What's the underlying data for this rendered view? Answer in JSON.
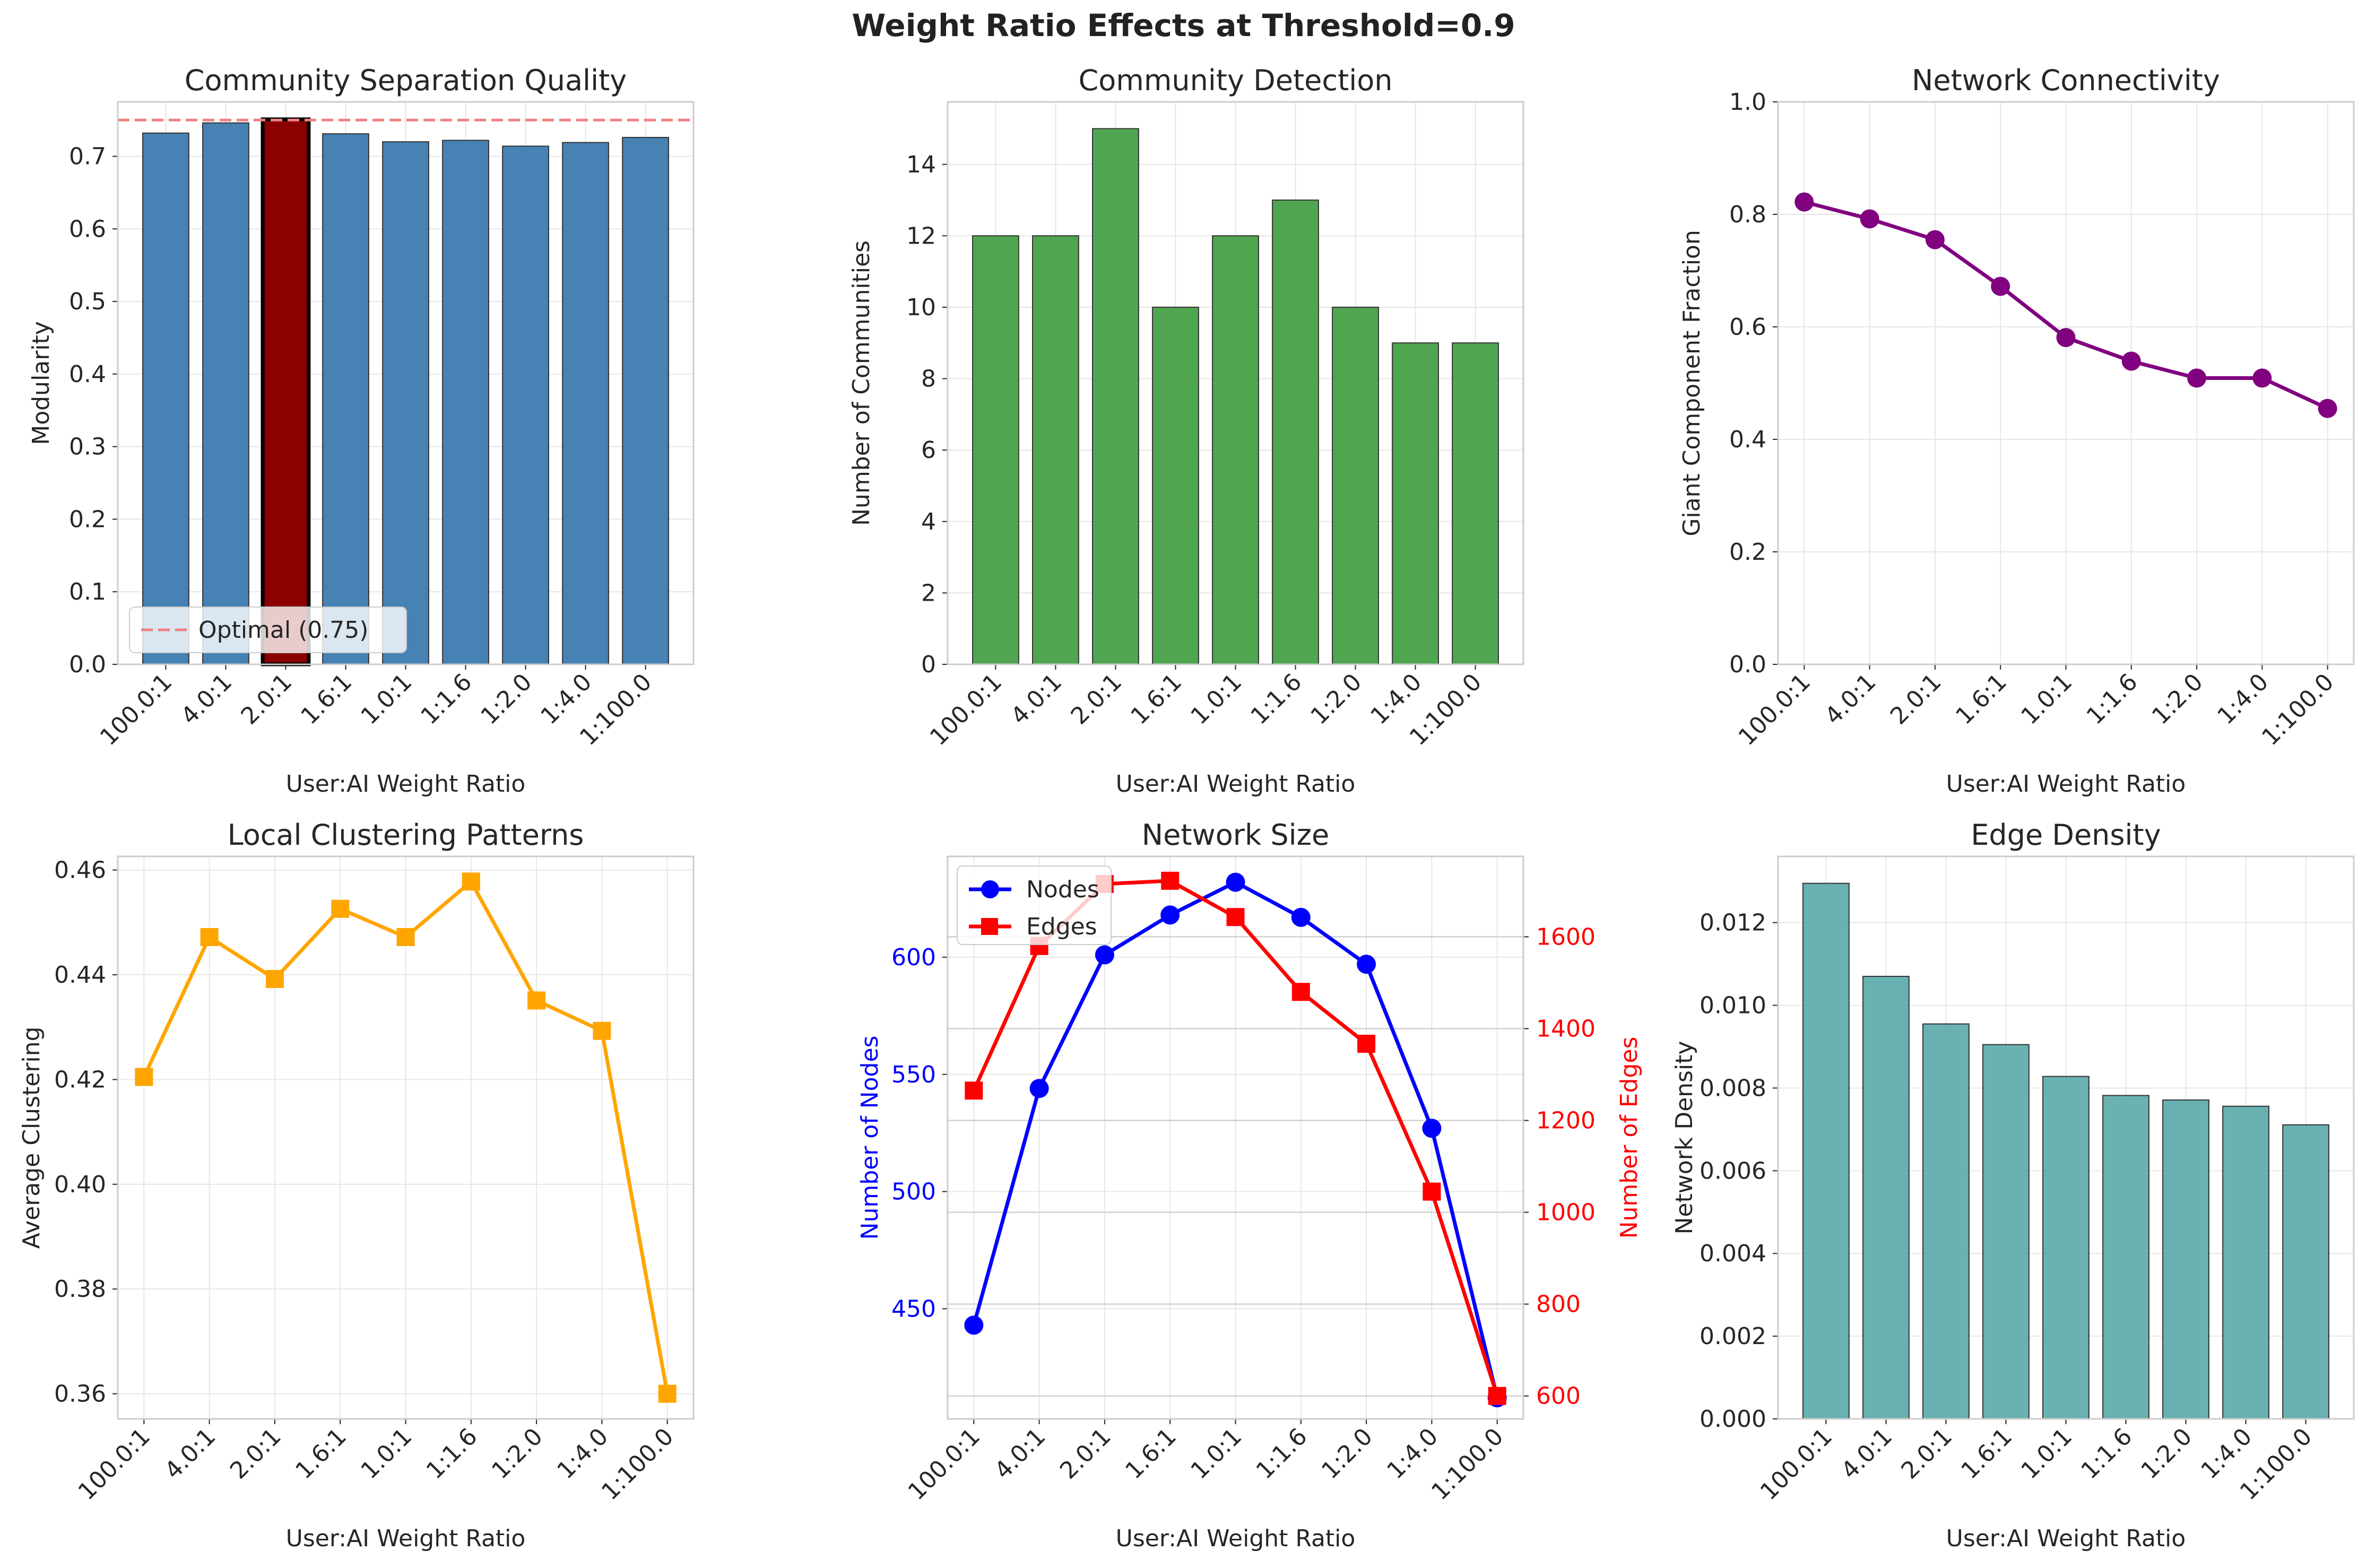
{
  "figure": {
    "title": "Weight Ratio Effects at Threshold=0.9"
  },
  "chart_data": [
    {
      "id": "modularity",
      "type": "bar",
      "title": "Community Separation Quality",
      "xlabel": "User:AI Weight Ratio",
      "ylabel": "Modularity",
      "categories": [
        "100.0:1",
        "4.0:1",
        "2.0:1",
        "1.6:1",
        "1.0:1",
        "1:1.6",
        "1:2.0",
        "1:4.0",
        "1:100.0"
      ],
      "values": [
        0.732,
        0.746,
        0.751,
        0.731,
        0.72,
        0.722,
        0.714,
        0.719,
        0.726
      ],
      "ylim": [
        0,
        0.775
      ],
      "yticks": [
        0.0,
        0.1,
        0.2,
        0.3,
        0.4,
        0.5,
        0.6,
        0.7
      ],
      "ytick_labels": [
        "0.0",
        "0.1",
        "0.2",
        "0.3",
        "0.4",
        "0.5",
        "0.6",
        "0.7"
      ],
      "bar_color": "#4682b4",
      "highlight_index": 2,
      "highlight_color": "#8b0000",
      "reference_line": {
        "value": 0.75,
        "label": "Optimal (0.75)",
        "color": "#f08080"
      },
      "legend_position": "lower-left",
      "grid": true
    },
    {
      "id": "communities",
      "type": "bar",
      "title": "Community Detection",
      "xlabel": "User:AI Weight Ratio",
      "ylabel": "Number of Communities",
      "categories": [
        "100.0:1",
        "4.0:1",
        "2.0:1",
        "1.6:1",
        "1.0:1",
        "1:1.6",
        "1:2.0",
        "1:4.0",
        "1:100.0"
      ],
      "values": [
        12,
        12,
        15,
        10,
        12,
        13,
        10,
        9,
        9
      ],
      "ylim": [
        0,
        15.75
      ],
      "yticks": [
        0,
        2,
        4,
        6,
        8,
        10,
        12,
        14
      ],
      "ytick_labels": [
        "0",
        "2",
        "4",
        "6",
        "8",
        "10",
        "12",
        "14"
      ],
      "bar_color": "#3d9c3d",
      "grid": true
    },
    {
      "id": "connectivity",
      "type": "line",
      "title": "Network Connectivity",
      "xlabel": "User:AI Weight Ratio",
      "ylabel": "Giant Component Fraction",
      "categories": [
        "100.0:1",
        "4.0:1",
        "2.0:1",
        "1.6:1",
        "1.0:1",
        "1:1.6",
        "1:2.0",
        "1:4.0",
        "1:100.0"
      ],
      "values": [
        0.822,
        0.792,
        0.755,
        0.672,
        0.581,
        0.539,
        0.509,
        0.509,
        0.455
      ],
      "ylim": [
        0,
        1.0
      ],
      "yticks": [
        0.0,
        0.2,
        0.4,
        0.6,
        0.8,
        1.0
      ],
      "ytick_labels": [
        "0.0",
        "0.2",
        "0.4",
        "0.6",
        "0.8",
        "1.0"
      ],
      "line_color": "#800080",
      "marker": "circle",
      "grid": true
    },
    {
      "id": "clustering",
      "type": "line",
      "title": "Local Clustering Patterns",
      "xlabel": "User:AI Weight Ratio",
      "ylabel": "Average Clustering",
      "categories": [
        "100.0:1",
        "4.0:1",
        "2.0:1",
        "1.6:1",
        "1.0:1",
        "1:1.6",
        "1:2.0",
        "1:4.0",
        "1:100.0"
      ],
      "values": [
        0.4205,
        0.4472,
        0.4392,
        0.4526,
        0.4472,
        0.4578,
        0.4351,
        0.4293,
        0.36
      ],
      "ylim": [
        0.3552,
        0.4626
      ],
      "yticks": [
        0.36,
        0.38,
        0.4,
        0.42,
        0.44,
        0.46
      ],
      "ytick_labels": [
        "0.36",
        "0.38",
        "0.40",
        "0.42",
        "0.44",
        "0.46"
      ],
      "line_color": "#ffa500",
      "marker": "square",
      "grid": true
    },
    {
      "id": "network_size",
      "type": "line",
      "title": "Network Size",
      "xlabel": "User:AI Weight Ratio",
      "ylabel": "Number of Nodes",
      "ylabel_right": "Number of Edges",
      "categories": [
        "100.0:1",
        "4.0:1",
        "2.0:1",
        "1.6:1",
        "1.0:1",
        "1:1.6",
        "1:2.0",
        "1:4.0",
        "1:100.0"
      ],
      "series": [
        {
          "name": "Nodes",
          "axis": "left",
          "color": "#0000ff",
          "marker": "circle",
          "values": [
            443,
            544,
            601,
            618,
            632,
            617,
            597,
            527,
            412
          ]
        },
        {
          "name": "Edges",
          "axis": "right",
          "color": "#ff0000",
          "marker": "square",
          "values": [
            1265,
            1580,
            1715,
            1722,
            1643,
            1480,
            1367,
            1045,
            600
          ]
        }
      ],
      "ylim": [
        403,
        643
      ],
      "yticks": [
        450,
        500,
        550,
        600
      ],
      "ytick_labels": [
        "450",
        "500",
        "550",
        "600"
      ],
      "ylim_right": [
        550,
        1775
      ],
      "yticks_right": [
        600,
        800,
        1000,
        1200,
        1400,
        1600
      ],
      "ytick_labels_right": [
        "600",
        "800",
        "1000",
        "1200",
        "1400",
        "1600"
      ],
      "legend_position": "upper-left",
      "grid": true
    },
    {
      "id": "density",
      "type": "bar",
      "title": "Edge Density",
      "xlabel": "User:AI Weight Ratio",
      "ylabel": "Network Density",
      "categories": [
        "100.0:1",
        "4.0:1",
        "2.0:1",
        "1.6:1",
        "1.0:1",
        "1:1.6",
        "1:2.0",
        "1:4.0",
        "1:100.0"
      ],
      "values": [
        0.01295,
        0.0107,
        0.00955,
        0.00905,
        0.00828,
        0.00782,
        0.00771,
        0.00756,
        0.00711
      ],
      "ylim": [
        0,
        0.0136
      ],
      "yticks": [
        0.0,
        0.002,
        0.004,
        0.006,
        0.008,
        0.01,
        0.012
      ],
      "ytick_labels": [
        "0.000",
        "0.002",
        "0.004",
        "0.006",
        "0.008",
        "0.010",
        "0.012"
      ],
      "bar_color": "#5aa9a9",
      "grid": true
    }
  ]
}
